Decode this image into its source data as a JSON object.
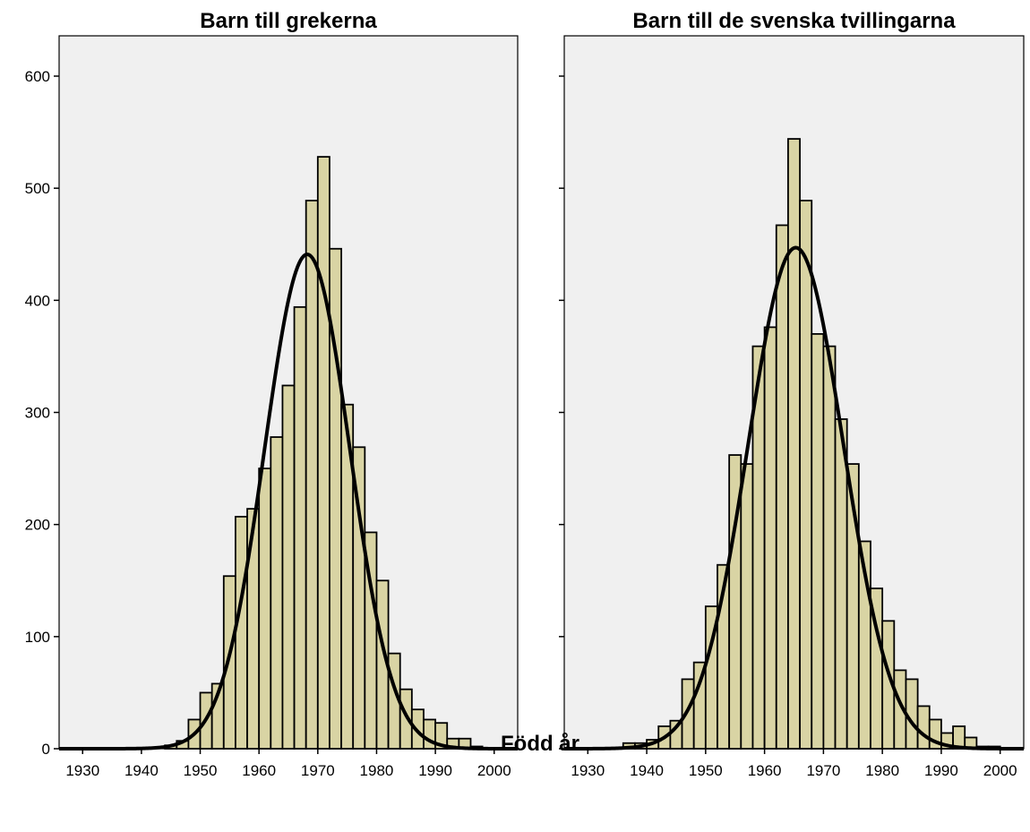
{
  "xlabel": "Född år",
  "chart_data": [
    {
      "type": "bar",
      "title": "Barn till grekerna",
      "xlabel": "Född år",
      "ylabel": "",
      "xlim": [
        1926,
        2004
      ],
      "ylim": [
        0,
        640
      ],
      "bin_width": 2,
      "x_ticks": [
        1930,
        1940,
        1950,
        1960,
        1970,
        1980,
        1990,
        2000
      ],
      "y_ticks": [
        0,
        100,
        200,
        300,
        400,
        500,
        600
      ],
      "grid": false,
      "bins": [
        {
          "start": 1944,
          "count": 3
        },
        {
          "start": 1946,
          "count": 7
        },
        {
          "start": 1948,
          "count": 26
        },
        {
          "start": 1950,
          "count": 50
        },
        {
          "start": 1952,
          "count": 58
        },
        {
          "start": 1954,
          "count": 154
        },
        {
          "start": 1956,
          "count": 207
        },
        {
          "start": 1958,
          "count": 214
        },
        {
          "start": 1960,
          "count": 250
        },
        {
          "start": 1962,
          "count": 278
        },
        {
          "start": 1964,
          "count": 324
        },
        {
          "start": 1966,
          "count": 394
        },
        {
          "start": 1968,
          "count": 489
        },
        {
          "start": 1970,
          "count": 528
        },
        {
          "start": 1972,
          "count": 446
        },
        {
          "start": 1974,
          "count": 307
        },
        {
          "start": 1976,
          "count": 269
        },
        {
          "start": 1978,
          "count": 193
        },
        {
          "start": 1980,
          "count": 150
        },
        {
          "start": 1982,
          "count": 85
        },
        {
          "start": 1984,
          "count": 53
        },
        {
          "start": 1986,
          "count": 35
        },
        {
          "start": 1988,
          "count": 26
        },
        {
          "start": 1990,
          "count": 23
        },
        {
          "start": 1992,
          "count": 9
        },
        {
          "start": 1994,
          "count": 9
        },
        {
          "start": 1996,
          "count": 2
        }
      ],
      "normal_curve": {
        "mean": 1968.2,
        "sd": 7.25,
        "peak": 441
      }
    },
    {
      "type": "bar",
      "title": "Barn till de svenska tvillingarna",
      "xlabel": "Född år",
      "ylabel": "",
      "xlim": [
        1926,
        2004
      ],
      "ylim": [
        0,
        640
      ],
      "bin_width": 2,
      "x_ticks": [
        1930,
        1940,
        1950,
        1960,
        1970,
        1980,
        1990,
        2000
      ],
      "y_ticks": [
        0,
        100,
        200,
        300,
        400,
        500,
        600
      ],
      "grid": false,
      "bins": [
        {
          "start": 1936,
          "count": 5
        },
        {
          "start": 1938,
          "count": 5
        },
        {
          "start": 1940,
          "count": 8
        },
        {
          "start": 1942,
          "count": 20
        },
        {
          "start": 1944,
          "count": 25
        },
        {
          "start": 1946,
          "count": 62
        },
        {
          "start": 1948,
          "count": 77
        },
        {
          "start": 1950,
          "count": 127
        },
        {
          "start": 1952,
          "count": 164
        },
        {
          "start": 1954,
          "count": 262
        },
        {
          "start": 1956,
          "count": 254
        },
        {
          "start": 1958,
          "count": 359
        },
        {
          "start": 1960,
          "count": 376
        },
        {
          "start": 1962,
          "count": 467
        },
        {
          "start": 1964,
          "count": 544
        },
        {
          "start": 1966,
          "count": 489
        },
        {
          "start": 1968,
          "count": 370
        },
        {
          "start": 1970,
          "count": 359
        },
        {
          "start": 1972,
          "count": 294
        },
        {
          "start": 1974,
          "count": 254
        },
        {
          "start": 1976,
          "count": 185
        },
        {
          "start": 1978,
          "count": 143
        },
        {
          "start": 1980,
          "count": 114
        },
        {
          "start": 1982,
          "count": 70
        },
        {
          "start": 1984,
          "count": 62
        },
        {
          "start": 1986,
          "count": 38
        },
        {
          "start": 1988,
          "count": 26
        },
        {
          "start": 1990,
          "count": 14
        },
        {
          "start": 1992,
          "count": 20
        },
        {
          "start": 1994,
          "count": 10
        },
        {
          "start": 1996,
          "count": 2
        },
        {
          "start": 1998,
          "count": 2
        }
      ],
      "normal_curve": {
        "mean": 1965.3,
        "sd": 8.1,
        "peak": 447
      }
    }
  ]
}
